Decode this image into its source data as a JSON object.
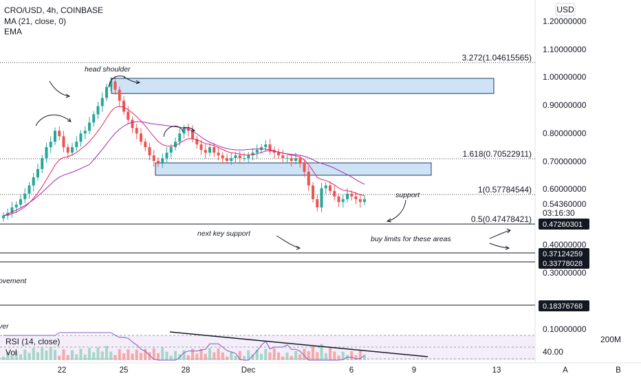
{
  "header": {
    "line1": "CRO/USD, 4h, COINBASE",
    "line2": "MA (21, close, 0)",
    "line3": "EMA"
  },
  "price_axis": {
    "currency_label": "USD",
    "ticks": [
      "1.20000000",
      "1.10000000",
      "1.00000000",
      "0.90000000",
      "0.80000000",
      "0.70000000",
      "0.60000000",
      "0.40000000",
      "0.30000000"
    ],
    "current_price": "0.54360000",
    "countdown": "03:16:30",
    "level_boxes": [
      "0.47260301",
      "0.37124259",
      "0.33778028",
      "0.18376768"
    ]
  },
  "fib_levels": [
    {
      "label": "3.272(1.04615565)"
    },
    {
      "label": "1.618(0.70522911)"
    },
    {
      "label": "1(0.57784544)"
    },
    {
      "label": "0.5(0.47478421)"
    }
  ],
  "annotations": {
    "head_shoulder": "head shoulder",
    "support": "support",
    "next_key_support": "next key support",
    "buy_limits": "buy limits for these areas",
    "movement_partial": "ovement",
    "over_partial": "ver"
  },
  "indicators": {
    "rsi_label": "RSI (14, close)",
    "vol_label": "Vol",
    "rsi_value": "40.00",
    "rsi_top": "0.10000000",
    "vol_value": "200M"
  },
  "time_axis": {
    "ticks": [
      "22",
      "25",
      "28",
      "Dec",
      "6",
      "9",
      "13"
    ]
  },
  "bottom_buttons": {
    "a": "A",
    "b": "B"
  },
  "colors": {
    "up": "#26a69a",
    "down": "#ef5350",
    "ma": "#9c27b0",
    "ema": "#e91e63",
    "zone_fill": "#bbdefb",
    "zone_stroke": "#1e3a5f"
  },
  "chart_data": {
    "type": "candlestick",
    "symbol": "CRO/USD",
    "interval": "4h",
    "ylim": [
      0.1,
      1.2
    ],
    "x_ticks": [
      "22",
      "25",
      "28",
      "Dec",
      "6",
      "9",
      "13"
    ],
    "close_series": [
      0.49,
      0.5,
      0.52,
      0.53,
      0.55,
      0.57,
      0.6,
      0.63,
      0.66,
      0.7,
      0.74,
      0.76,
      0.8,
      0.78,
      0.74,
      0.72,
      0.74,
      0.76,
      0.79,
      0.8,
      0.83,
      0.86,
      0.89,
      0.92,
      0.96,
      0.98,
      0.95,
      0.91,
      0.87,
      0.84,
      0.81,
      0.79,
      0.76,
      0.74,
      0.71,
      0.69,
      0.68,
      0.7,
      0.72,
      0.74,
      0.76,
      0.79,
      0.81,
      0.8,
      0.77,
      0.75,
      0.73,
      0.72,
      0.74,
      0.72,
      0.71,
      0.7,
      0.69,
      0.7,
      0.71,
      0.7,
      0.7,
      0.71,
      0.72,
      0.73,
      0.74,
      0.75,
      0.73,
      0.72,
      0.71,
      0.7,
      0.7,
      0.69,
      0.7,
      0.68,
      0.65,
      0.6,
      0.55,
      0.52,
      0.59,
      0.6,
      0.58,
      0.56,
      0.54,
      0.55,
      0.57,
      0.56,
      0.55,
      0.54,
      0.55
    ],
    "resistance_zones": [
      [
        0.93,
        0.99
      ],
      [
        0.65,
        0.69
      ]
    ],
    "support_levels": [
      0.47260301,
      0.37124259,
      0.33778028,
      0.18376768
    ]
  }
}
